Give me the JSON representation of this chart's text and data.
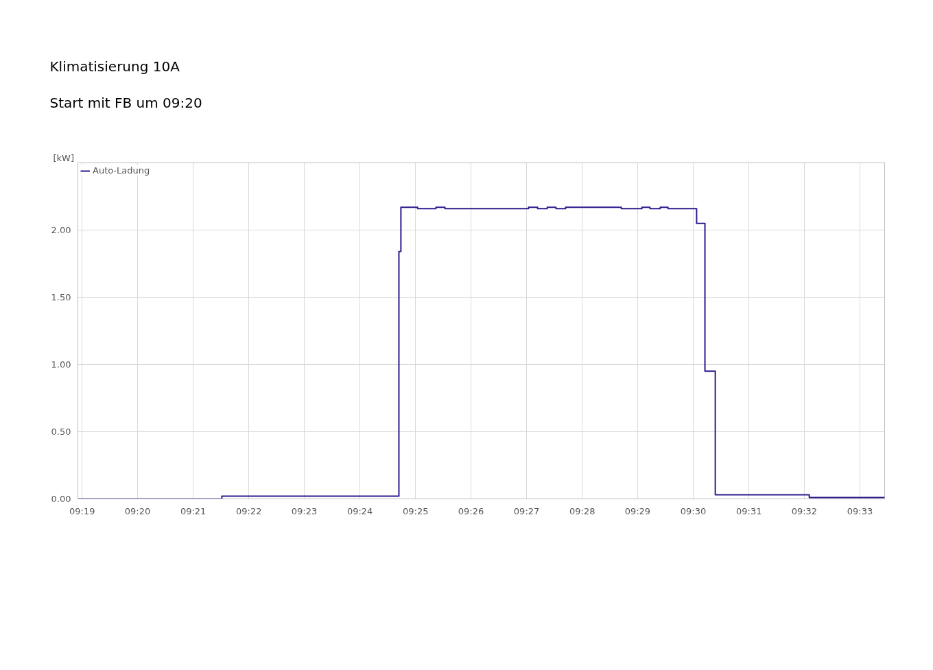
{
  "chart_data": {
    "type": "step",
    "title": "Klimatisierung 10A",
    "subtitle": "Start mit FB um 09:20",
    "ylabel": "[kW]",
    "x": [
      9.3154,
      9.3586,
      9.4117,
      9.4123,
      9.4173,
      9.4228,
      9.4255,
      9.4506,
      9.4533,
      9.4562,
      9.4588,
      9.4617,
      9.4784,
      9.4846,
      9.487,
      9.4901,
      9.4924,
      9.501,
      9.5035,
      9.5066,
      9.5348,
      9.5574
    ],
    "series": [
      {
        "name": "Auto-Ladung",
        "color": "#2d1b8e",
        "values": [
          0,
          0.02,
          1.84,
          2.17,
          2.16,
          2.17,
          2.16,
          2.17,
          2.16,
          2.17,
          2.16,
          2.17,
          2.16,
          2.17,
          2.16,
          2.17,
          2.16,
          2.05,
          0.95,
          0.03,
          0.01,
          0.01
        ]
      }
    ],
    "xlim": [
      9.3154,
      9.5574
    ],
    "ylim": [
      0,
      2.5
    ],
    "xticks": [
      {
        "value": 9.3167,
        "label": "09:19"
      },
      {
        "value": 9.3333,
        "label": "09:20"
      },
      {
        "value": 9.35,
        "label": "09:21"
      },
      {
        "value": 9.3667,
        "label": "09:22"
      },
      {
        "value": 9.3833,
        "label": "09:23"
      },
      {
        "value": 9.4,
        "label": "09:24"
      },
      {
        "value": 9.4167,
        "label": "09:25"
      },
      {
        "value": 9.4333,
        "label": "09:26"
      },
      {
        "value": 9.45,
        "label": "09:27"
      },
      {
        "value": 9.4667,
        "label": "09:28"
      },
      {
        "value": 9.4833,
        "label": "09:29"
      },
      {
        "value": 9.5,
        "label": "09:30"
      },
      {
        "value": 9.5167,
        "label": "09:31"
      },
      {
        "value": 9.5333,
        "label": "09:32"
      },
      {
        "value": 9.55,
        "label": "09:33"
      }
    ],
    "yticks": [
      {
        "value": 0,
        "label": "0.00"
      },
      {
        "value": 0.5,
        "label": "0.50"
      },
      {
        "value": 1.0,
        "label": "1.00"
      },
      {
        "value": 1.5,
        "label": "1.50"
      },
      {
        "value": 2.0,
        "label": "2.00"
      }
    ],
    "grid": true,
    "legend": "top left"
  }
}
